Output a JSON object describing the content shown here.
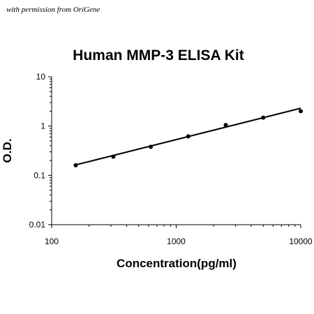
{
  "watermark": "with permission from OriGene",
  "chart_data": {
    "type": "scatter",
    "title": "Human MMP-3 ELISA Kit",
    "xlabel": "Concentration(pg/ml)",
    "ylabel": "O.D.",
    "xscale": "log",
    "yscale": "log",
    "xlim": [
      100,
      10000
    ],
    "ylim": [
      0.01,
      10
    ],
    "xticks": [
      "100",
      "1000",
      "10000"
    ],
    "yticks": [
      "0.01",
      "0.1",
      "1",
      "10"
    ],
    "x": [
      156,
      313,
      625,
      1250,
      2500,
      5000,
      10000
    ],
    "y": [
      0.16,
      0.24,
      0.38,
      0.62,
      1.05,
      1.48,
      2.0
    ],
    "fit_line": {
      "x": [
        156,
        10000
      ],
      "y": [
        0.163,
        2.3
      ]
    },
    "grid": false,
    "legend": "none",
    "colors": {
      "points": "#000000",
      "line": "#000000"
    }
  }
}
